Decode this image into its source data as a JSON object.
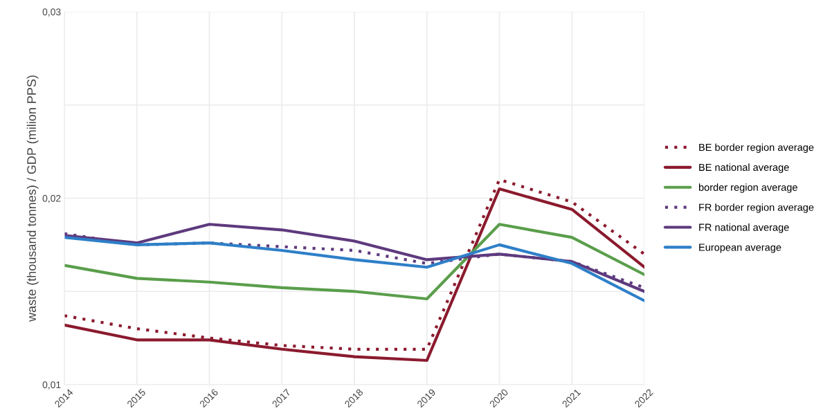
{
  "chart_data": {
    "type": "line",
    "ylabel": "waste (thousand tonnes) / GDP (milion PPS)",
    "x": [
      2014,
      2015,
      2016,
      2017,
      2018,
      2019,
      2020,
      2021,
      2022
    ],
    "xlim": [
      2014,
      2022
    ],
    "xticks": [
      2014,
      2015,
      2016,
      2017,
      2018,
      2019,
      2020,
      2021,
      2022
    ],
    "ylim": [
      0.01,
      0.03
    ],
    "yticks": [
      {
        "value": 0.01,
        "label": "0,01"
      },
      {
        "value": 0.015,
        "label": null
      },
      {
        "value": 0.02,
        "label": "0,02"
      },
      {
        "value": 0.025,
        "label": null
      },
      {
        "value": 0.03,
        "label": "0,03"
      }
    ],
    "grid": true,
    "legend": "right",
    "marker": "none",
    "series": [
      {
        "name": "BE border region average",
        "color": "#8b1a2e",
        "line_style": "dotted",
        "values": [
          0.0137,
          0.013,
          0.0125,
          0.0121,
          0.0119,
          0.0119,
          0.021,
          0.0198,
          0.017
        ]
      },
      {
        "name": "BE national average",
        "color": "#8b1a2e",
        "line_style": "solid",
        "values": [
          0.0132,
          0.0124,
          0.0124,
          0.0119,
          0.0115,
          0.0113,
          0.0205,
          0.0194,
          0.0163
        ]
      },
      {
        "name": "border region average",
        "color": "#5a9e4b",
        "line_style": "solid",
        "values": [
          0.0164,
          0.0157,
          0.0155,
          0.0152,
          0.015,
          0.0146,
          0.0186,
          0.0179,
          0.0159
        ]
      },
      {
        "name": "FR border region average",
        "color": "#5e3a7e",
        "line_style": "dotted",
        "values": [
          0.0181,
          0.0175,
          0.0176,
          0.0174,
          0.0172,
          0.0165,
          0.017,
          0.0166,
          0.0152
        ]
      },
      {
        "name": "FR national average",
        "color": "#5e3a7e",
        "line_style": "solid",
        "values": [
          0.018,
          0.0176,
          0.0186,
          0.0183,
          0.0177,
          0.0167,
          0.017,
          0.0166,
          0.015
        ]
      },
      {
        "name": "European average",
        "color": "#2e7fc8",
        "line_style": "solid",
        "values": [
          0.0179,
          0.0175,
          0.0176,
          0.0172,
          0.0167,
          0.0163,
          0.0175,
          0.0165,
          0.0145
        ]
      }
    ]
  }
}
